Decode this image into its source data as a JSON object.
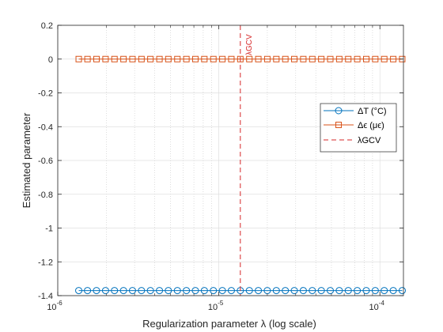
{
  "chart_data": {
    "type": "line",
    "xlabel": "Regularization parameter λ (log scale)",
    "ylabel": "Estimated parameter",
    "xscale": "log",
    "xlim": [
      1e-06,
      0.00014
    ],
    "ylim": [
      -1.4,
      0.2
    ],
    "grid": "on",
    "minor_grid_x": "on",
    "legend_position": "right",
    "x_ticks": [
      {
        "value": 1e-06,
        "base": "10",
        "exp": "-6"
      },
      {
        "value": 1e-05,
        "base": "10",
        "exp": "-5"
      },
      {
        "value": 0.0001,
        "base": "10",
        "exp": "-4"
      }
    ],
    "y_ticks": [
      "0.2",
      "0",
      "-0.2",
      "-0.4",
      "-0.6",
      "-0.8",
      "-1",
      "-1.2",
      "-1.4"
    ],
    "x_points": [
      1.35e-06,
      1.53e-06,
      1.74e-06,
      1.98e-06,
      2.25e-06,
      2.56e-06,
      2.91e-06,
      3.31e-06,
      3.76e-06,
      4.28e-06,
      4.86e-06,
      5.53e-06,
      6.29e-06,
      7.15e-06,
      8.13e-06,
      9.25e-06,
      1.052e-05,
      1.196e-05,
      1.36e-05,
      1.547e-05,
      1.759e-05,
      2e-05,
      2.275e-05,
      2.587e-05,
      2.942e-05,
      3.345e-05,
      3.804e-05,
      4.326e-05,
      4.919e-05,
      5.594e-05,
      6.362e-05,
      7.234e-05,
      8.227e-05,
      9.355e-05,
      0.0001064,
      0.000121,
      0.0001376
    ],
    "series": [
      {
        "name": "ΔT (°C)",
        "marker": "circle",
        "color": "#0072BD",
        "value": -1.37
      },
      {
        "name": "Δϵ (μϵ)",
        "marker": "square",
        "color": "#D95319",
        "value": 0
      }
    ],
    "gcv": {
      "name": "λGCV",
      "label": "λGCV",
      "x": 1.36e-05,
      "color": "#D62728"
    },
    "colors": {
      "axis": "#262626",
      "grid": "#dfdfdf",
      "minor_grid": "#c8c8c8"
    }
  }
}
